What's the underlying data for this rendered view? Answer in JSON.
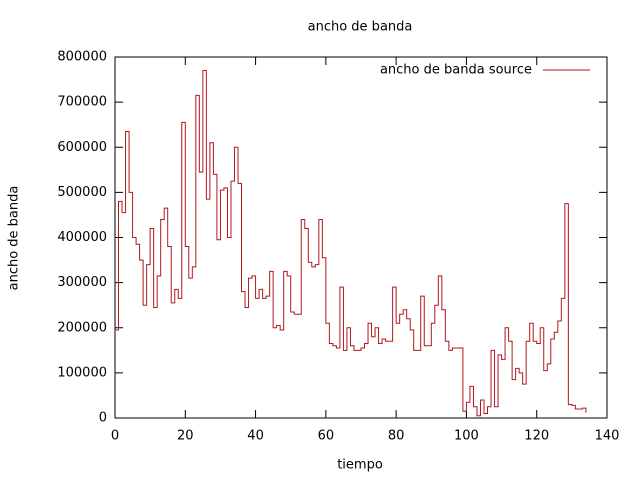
{
  "chart_data": {
    "type": "step",
    "title": "ancho de banda",
    "x_label": "tiempo",
    "y_label": "ancho de banda",
    "legend": "top-right",
    "x": [
      0,
      1,
      2,
      3,
      4,
      5,
      6,
      7,
      8,
      9,
      10,
      11,
      12,
      13,
      14,
      15,
      16,
      17,
      18,
      19,
      20,
      21,
      22,
      23,
      24,
      25,
      26,
      27,
      28,
      29,
      30,
      31,
      32,
      33,
      34,
      35,
      36,
      37,
      38,
      39,
      40,
      41,
      42,
      43,
      44,
      45,
      46,
      47,
      48,
      49,
      50,
      51,
      52,
      53,
      54,
      55,
      56,
      57,
      58,
      59,
      60,
      61,
      62,
      63,
      64,
      65,
      66,
      67,
      68,
      69,
      70,
      71,
      72,
      73,
      74,
      75,
      76,
      77,
      78,
      79,
      80,
      81,
      82,
      83,
      84,
      85,
      86,
      87,
      88,
      89,
      90,
      91,
      92,
      93,
      94,
      95,
      96,
      97,
      98,
      99,
      100,
      101,
      102,
      103,
      104,
      105,
      106,
      107,
      108,
      109,
      110,
      111,
      112,
      113,
      114,
      115,
      116,
      117,
      118,
      119,
      120,
      121,
      122,
      123,
      124,
      125,
      126,
      127,
      128,
      129,
      130,
      131,
      132,
      133,
      134
    ],
    "series": [
      {
        "name": "ancho de banda source",
        "color": "#b0181c",
        "values": [
          195000,
          480000,
          455000,
          635000,
          500000,
          400000,
          385000,
          350000,
          250000,
          340000,
          420000,
          245000,
          315000,
          440000,
          465000,
          380000,
          255000,
          285000,
          265000,
          655000,
          380000,
          310000,
          335000,
          715000,
          545000,
          770000,
          485000,
          610000,
          540000,
          395000,
          505000,
          510000,
          400000,
          525000,
          600000,
          520000,
          280000,
          245000,
          310000,
          315000,
          265000,
          285000,
          265000,
          270000,
          325000,
          200000,
          205000,
          195000,
          325000,
          315000,
          235000,
          230000,
          230000,
          440000,
          420000,
          345000,
          335000,
          340000,
          440000,
          355000,
          210000,
          165000,
          160000,
          155000,
          290000,
          150000,
          200000,
          160000,
          150000,
          150000,
          155000,
          165000,
          210000,
          180000,
          200000,
          165000,
          175000,
          170000,
          170000,
          290000,
          210000,
          230000,
          240000,
          220000,
          195000,
          150000,
          150000,
          270000,
          160000,
          160000,
          210000,
          250000,
          315000,
          240000,
          170000,
          150000,
          155000,
          155000,
          155000,
          15000,
          35000,
          70000,
          25000,
          5000,
          40000,
          10000,
          25000,
          150000,
          25000,
          140000,
          130000,
          200000,
          170000,
          85000,
          110000,
          100000,
          75000,
          170000,
          210000,
          170000,
          165000,
          200000,
          105000,
          120000,
          175000,
          190000,
          215000,
          265000,
          475000,
          30000,
          28000,
          20000,
          20000,
          22000,
          12000
        ]
      }
    ],
    "xlim": [
      0,
      140
    ],
    "xticks": [
      0,
      20,
      40,
      60,
      80,
      100,
      120,
      140
    ],
    "ylim": [
      0,
      800000
    ],
    "yticks": [
      0,
      100000,
      200000,
      300000,
      400000,
      500000,
      600000,
      700000,
      800000
    ]
  }
}
